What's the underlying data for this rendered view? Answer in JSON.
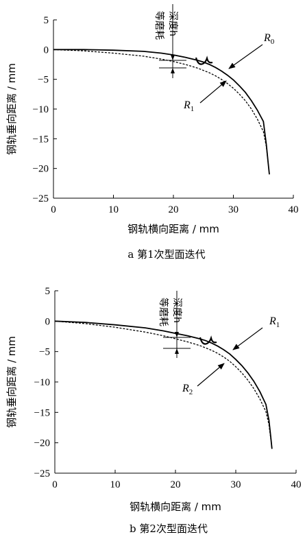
{
  "chart_data": [
    {
      "type": "line",
      "caption": "a 第1次型面迭代",
      "xlabel": "钢轨横向距离 / mm",
      "ylabel": "钢轨垂向距离 / mm",
      "xlim": [
        0,
        40
      ],
      "ylim": [
        -25,
        5
      ],
      "xticks": [
        0,
        10,
        20,
        30,
        40
      ],
      "yticks": [
        5,
        0,
        -5,
        -10,
        -15,
        -20,
        -25
      ],
      "annotation": [
        "等磨耗",
        "深度h"
      ],
      "series": [
        {
          "name": "R0",
          "style": "solid",
          "x": [
            0,
            5,
            10,
            15,
            18,
            20,
            22,
            24,
            25,
            26,
            27,
            28,
            29,
            30,
            31,
            32,
            33,
            34,
            35,
            35.5,
            35.8,
            36.0
          ],
          "y": [
            0,
            0,
            -0.1,
            -0.3,
            -0.6,
            -0.9,
            -1.3,
            -1.8,
            -2.1,
            -2.5,
            -3.0,
            -3.6,
            -4.3,
            -5.1,
            -6.1,
            -7.2,
            -8.6,
            -10.2,
            -12.1,
            -16.0,
            -19.0,
            -21.0
          ]
        },
        {
          "name": "R1",
          "style": "dashed",
          "x": [
            0,
            5,
            10,
            15,
            18,
            20,
            22,
            24,
            25,
            26,
            27,
            28,
            29,
            30,
            31,
            32,
            33,
            34,
            35,
            35.5,
            35.8,
            36.0
          ],
          "y": [
            0,
            -0.2,
            -0.6,
            -1.1,
            -1.6,
            -2.0,
            -2.5,
            -3.1,
            -3.5,
            -3.9,
            -4.4,
            -5.0,
            -5.7,
            -6.5,
            -7.5,
            -8.6,
            -10.0,
            -11.7,
            -13.8,
            -16.3,
            -19.0,
            -21.0
          ]
        }
      ],
      "labels": [
        "R",
        "0",
        "R",
        "1"
      ]
    },
    {
      "type": "line",
      "caption": "b 第2次型面迭代",
      "xlabel": "钢轨横向距离 / mm",
      "ylabel": "钢轨垂向距离 / mm",
      "xlim": [
        0,
        40
      ],
      "ylim": [
        -25,
        5
      ],
      "xticks": [
        0,
        10,
        20,
        30,
        40
      ],
      "yticks": [
        5,
        0,
        -5,
        -10,
        -15,
        -20,
        -25
      ],
      "annotation": [
        "等磨耗",
        "深度h"
      ],
      "series": [
        {
          "name": "R1",
          "style": "solid",
          "x": [
            0,
            5,
            10,
            15,
            18,
            20,
            22,
            24,
            25,
            26,
            27,
            28,
            29,
            30,
            31,
            32,
            33,
            34,
            35,
            35.5,
            35.8,
            36.0
          ],
          "y": [
            0,
            -0.2,
            -0.6,
            -1.1,
            -1.6,
            -2.0,
            -2.4,
            -2.9,
            -3.2,
            -3.6,
            -4.1,
            -4.7,
            -5.4,
            -6.3,
            -7.3,
            -8.5,
            -9.9,
            -11.6,
            -13.7,
            -16.3,
            -19.0,
            -21.0
          ]
        },
        {
          "name": "R2",
          "style": "dashed",
          "x": [
            0,
            5,
            10,
            15,
            18,
            20,
            22,
            24,
            25,
            26,
            27,
            28,
            29,
            30,
            31,
            32,
            33,
            34,
            35,
            35.5,
            35.8,
            36.0
          ],
          "y": [
            0,
            -0.4,
            -1.0,
            -1.8,
            -2.4,
            -2.9,
            -3.4,
            -4.0,
            -4.4,
            -4.8,
            -5.3,
            -5.9,
            -6.6,
            -7.5,
            -8.5,
            -9.7,
            -11.1,
            -12.8,
            -14.9,
            -17.0,
            -19.3,
            -21.0
          ]
        }
      ],
      "labels": [
        "R",
        "1",
        "R",
        "2"
      ]
    }
  ]
}
